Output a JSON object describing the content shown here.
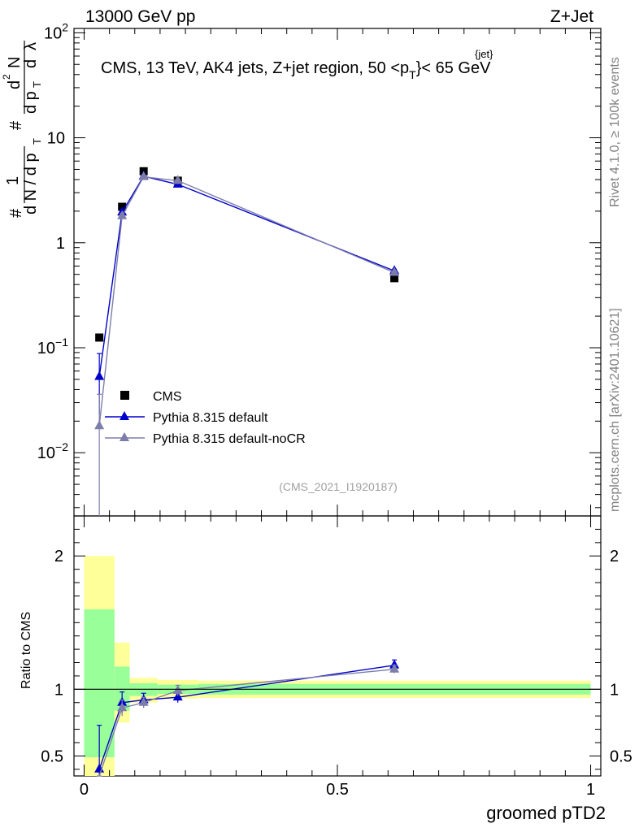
{
  "header": {
    "left": "13000 GeV pp",
    "right": "Z+Jet"
  },
  "side_labels": {
    "rivet": "Rivet 4.1.0, ≥ 100k events",
    "mcplots": "mcplots.cern.ch [arXiv:2401.10621]"
  },
  "annotation": {
    "prefix": "CMS, 13 TeV, AK4 jets, Z+jet region, 50 <p",
    "sub": "T",
    "sup": "{jet}",
    "suffix": "}< 65 GeV"
  },
  "analysis_id": "(CMS_2021_I1920187)",
  "colors": {
    "cms": "#000000",
    "default": "#0000cc",
    "nocr": "#7d7dab",
    "band_inner": "#99ff99",
    "band_outer": "#ffff99"
  },
  "chart_data": {
    "type": "scatter",
    "xlabel": "groomed pTD2",
    "ylabel_main": "1/N dN/dλ (normalized)",
    "ylabel_ratio": "Ratio to CMS",
    "xlim": [
      -0.02,
      1.02
    ],
    "ylim_main": [
      0.0025,
      110
    ],
    "ylim_ratio": [
      0.35,
      2.3
    ],
    "main_yticks": [
      {
        "value": 0.01,
        "base": "10",
        "exp": "−2"
      },
      {
        "value": 0.1,
        "base": "10",
        "exp": "−1"
      },
      {
        "value": 1,
        "base": "1",
        "exp": ""
      },
      {
        "value": 10,
        "base": "10",
        "exp": ""
      },
      {
        "value": 100,
        "base": "10",
        "exp": "2"
      }
    ],
    "ratio_yticks": [
      0.5,
      1,
      2
    ],
    "xticks": [
      {
        "value": 0,
        "label": "0"
      },
      {
        "value": 0.5,
        "label": "0.5"
      },
      {
        "value": 1,
        "label": "1"
      }
    ],
    "bins": [
      {
        "lo": 0.0,
        "hi": 0.06
      },
      {
        "lo": 0.06,
        "hi": 0.09
      },
      {
        "lo": 0.09,
        "hi": 0.145
      },
      {
        "lo": 0.145,
        "hi": 0.225
      },
      {
        "lo": 0.225,
        "hi": 1.0
      }
    ],
    "series": [
      {
        "name": "CMS",
        "marker": "square",
        "x": [
          0.03,
          0.075,
          0.1175,
          0.185,
          0.6125
        ],
        "values": [
          0.125,
          2.2,
          4.8,
          3.9,
          0.46
        ]
      },
      {
        "name": "Pythia 8.315 default",
        "marker": "triangle",
        "x": [
          0.03,
          0.075,
          0.1175,
          0.185,
          0.6125
        ],
        "values": [
          0.053,
          1.95,
          4.3,
          3.6,
          0.54
        ],
        "err_lo": [
          0.03,
          0.1,
          0.1,
          0.1,
          0.02
        ],
        "err_hi": [
          0.035,
          0.1,
          0.1,
          0.1,
          0.02
        ],
        "ratio": [
          0.4,
          0.9,
          0.92,
          0.94,
          1.18
        ],
        "ratio_err": [
          0.33,
          0.08,
          0.05,
          0.04,
          0.04
        ]
      },
      {
        "name": "Pythia 8.315 default-noCR",
        "marker": "triangle",
        "x": [
          0.03,
          0.075,
          0.1175,
          0.185,
          0.6125
        ],
        "values": [
          0.018,
          1.8,
          4.25,
          3.9,
          0.52
        ],
        "err_lo": [
          0.0175,
          0.1,
          0.1,
          0.1,
          0.02
        ],
        "err_hi": [
          0.018,
          0.1,
          0.1,
          0.1,
          0.02
        ],
        "ratio": [
          0.14,
          0.86,
          0.9,
          0.99,
          1.15
        ],
        "ratio_err": [
          0.12,
          0.06,
          0.04,
          0.04,
          0.03
        ]
      }
    ],
    "cms_band": {
      "inner": [
        [
          0.49,
          1.6
        ],
        [
          0.84,
          1.17
        ],
        [
          0.95,
          1.045
        ],
        [
          0.965,
          1.035
        ],
        [
          0.96,
          1.04
        ]
      ],
      "outer": [
        [
          0.3,
          2.0
        ],
        [
          0.75,
          1.35
        ],
        [
          0.9,
          1.085
        ],
        [
          0.93,
          1.07
        ],
        [
          0.935,
          1.065
        ]
      ]
    }
  }
}
